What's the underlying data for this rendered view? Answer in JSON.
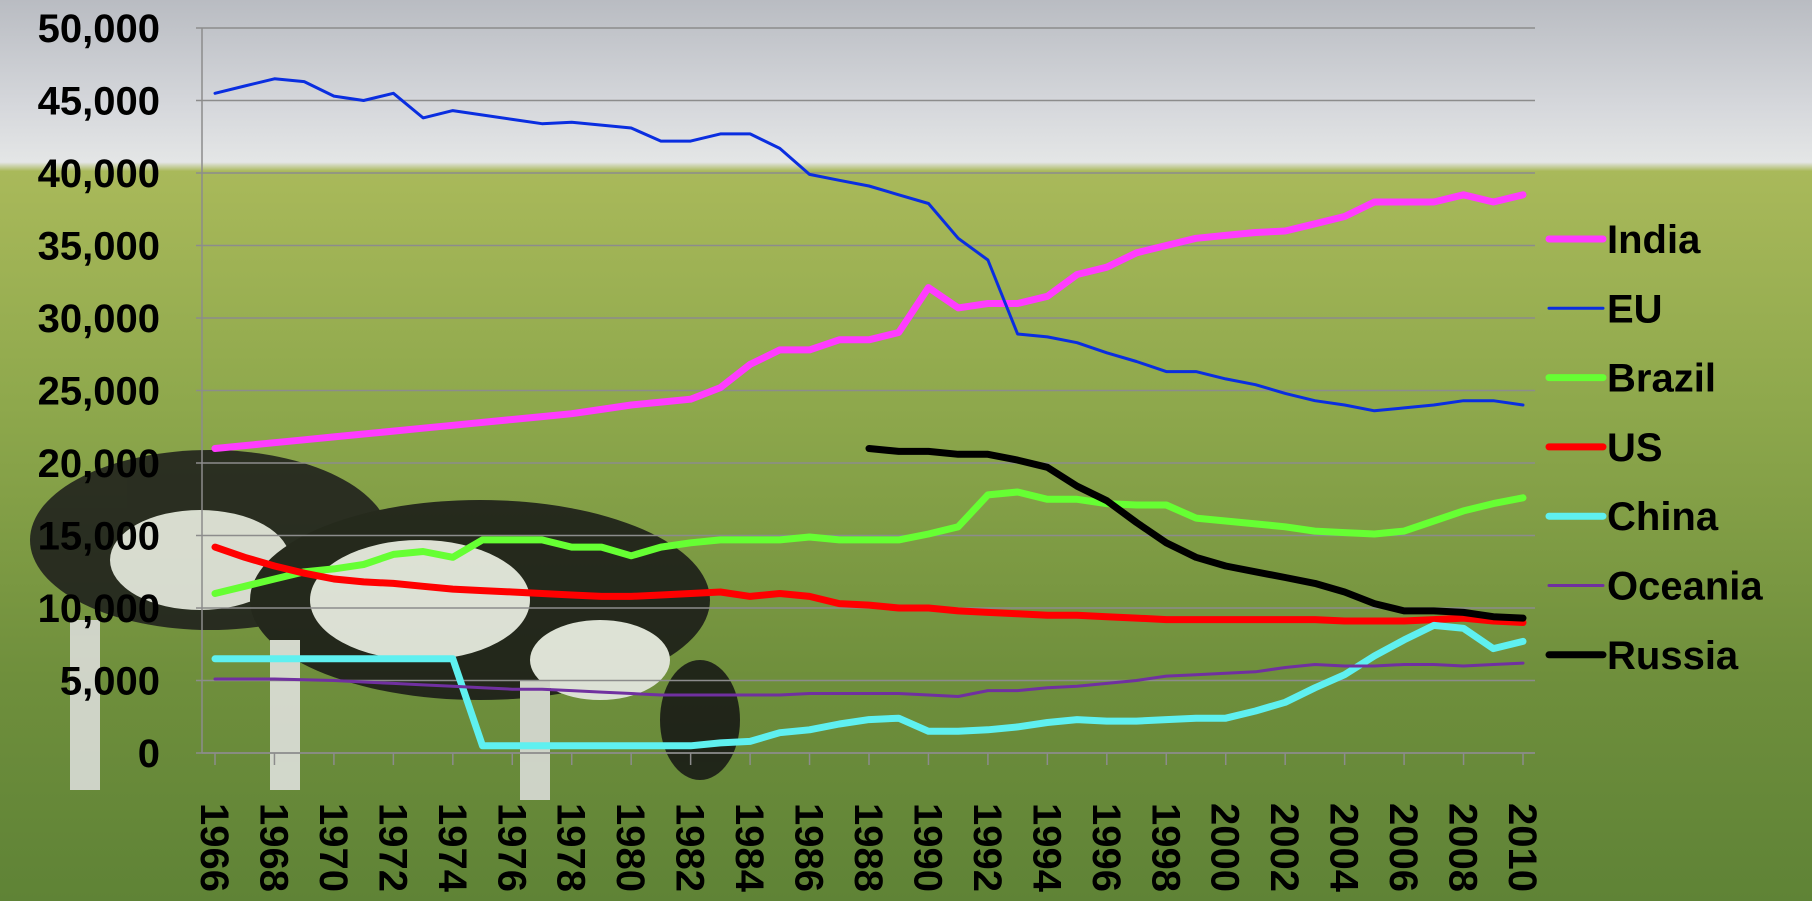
{
  "chart_data": {
    "type": "line",
    "x": [
      1966,
      1967,
      1968,
      1969,
      1970,
      1971,
      1972,
      1973,
      1974,
      1975,
      1976,
      1977,
      1978,
      1979,
      1980,
      1981,
      1982,
      1983,
      1984,
      1985,
      1986,
      1987,
      1988,
      1989,
      1990,
      1991,
      1992,
      1993,
      1994,
      1995,
      1996,
      1997,
      1998,
      1999,
      2000,
      2001,
      2002,
      2003,
      2004,
      2005,
      2006,
      2007,
      2008,
      2009,
      2010
    ],
    "xlim": [
      1966,
      2010
    ],
    "xticks": [
      1966,
      1968,
      1970,
      1972,
      1974,
      1976,
      1978,
      1980,
      1982,
      1984,
      1986,
      1988,
      1990,
      1992,
      1994,
      1996,
      1998,
      2000,
      2002,
      2004,
      2006,
      2008,
      2010
    ],
    "ylim": [
      0,
      50000
    ],
    "yticks": [
      0,
      {
        "value": 5000,
        "label": "5,000"
      },
      {
        "value": 10000,
        "label": "10,000"
      },
      {
        "value": 15000,
        "label": "15,000"
      },
      {
        "value": 20000,
        "label": "20,000"
      },
      {
        "value": 25000,
        "label": "25,000"
      },
      {
        "value": 30000,
        "label": "30,000"
      },
      {
        "value": 35000,
        "label": "35,000"
      },
      {
        "value": 40000,
        "label": "40,000"
      },
      {
        "value": 45000,
        "label": "45,000"
      },
      {
        "value": 50000,
        "label": "50,000"
      }
    ],
    "grid": true,
    "legend": "right",
    "series": [
      {
        "name": "India",
        "color": "#ff3cff",
        "width": 7,
        "values": [
          21000,
          21200,
          21400,
          21600,
          21800,
          22000,
          22200,
          22400,
          22600,
          22800,
          23000,
          23200,
          23400,
          23700,
          24000,
          24200,
          24400,
          25200,
          26800,
          27800,
          27800,
          28500,
          28500,
          29000,
          32100,
          30700,
          31000,
          31000,
          31500,
          33000,
          33500,
          34500,
          35000,
          35500,
          35700,
          35900,
          36000,
          36500,
          37000,
          38000,
          38000,
          38000,
          38500,
          38000,
          38500
        ]
      },
      {
        "name": "EU",
        "color": "#0a2ee0",
        "width": 3,
        "values": [
          45500,
          46000,
          46500,
          46300,
          45300,
          45000,
          45500,
          43800,
          44300,
          44000,
          43700,
          43400,
          43500,
          43300,
          43100,
          42200,
          42200,
          42700,
          42700,
          41700,
          39900,
          39500,
          39100,
          38500,
          37900,
          35500,
          34000,
          28900,
          28700,
          28300,
          27600,
          27000,
          26300,
          26300,
          25800,
          25400,
          24800,
          24300,
          24000,
          23600,
          23800,
          24000,
          24300,
          24300,
          24000
        ]
      },
      {
        "name": "Brazil",
        "color": "#66ff33",
        "width": 7,
        "values": [
          11000,
          11500,
          12000,
          12500,
          12700,
          13000,
          13700,
          13900,
          13500,
          14700,
          14700,
          14700,
          14200,
          14200,
          13600,
          14200,
          14500,
          14700,
          14700,
          14700,
          14900,
          14700,
          14700,
          14700,
          15100,
          15600,
          17800,
          18000,
          17500,
          17500,
          17200,
          17100,
          17100,
          16200,
          16000,
          15800,
          15600,
          15300,
          15200,
          15100,
          15300,
          16000,
          16700,
          17200,
          17600
        ]
      },
      {
        "name": "US",
        "color": "#ff0000",
        "width": 7,
        "values": [
          14200,
          13500,
          12900,
          12400,
          12000,
          11800,
          11700,
          11500,
          11300,
          11200,
          11100,
          11000,
          10900,
          10800,
          10800,
          10900,
          11000,
          11100,
          10800,
          11000,
          10800,
          10300,
          10200,
          10000,
          10000,
          9800,
          9700,
          9600,
          9500,
          9500,
          9400,
          9300,
          9200,
          9200,
          9200,
          9200,
          9200,
          9200,
          9100,
          9100,
          9100,
          9200,
          9300,
          9100,
          9000
        ]
      },
      {
        "name": "China",
        "color": "#5ff0f0",
        "width": 7,
        "values": [
          6500,
          6500,
          6500,
          6500,
          6500,
          6500,
          6500,
          6500,
          6500,
          500,
          500,
          500,
          500,
          500,
          500,
          500,
          500,
          700,
          800,
          1400,
          1600,
          2000,
          2300,
          2400,
          1500,
          1500,
          1600,
          1800,
          2100,
          2300,
          2200,
          2200,
          2300,
          2400,
          2400,
          2900,
          3500,
          4500,
          5400,
          6700,
          7800,
          8800,
          8600,
          7200,
          7700
        ]
      },
      {
        "name": "Oceania",
        "color": "#7030a0",
        "width": 3,
        "values": [
          5100,
          5100,
          5100,
          5050,
          5000,
          4900,
          4800,
          4700,
          4600,
          4500,
          4400,
          4400,
          4300,
          4200,
          4100,
          4000,
          4000,
          4000,
          4000,
          4000,
          4100,
          4100,
          4100,
          4100,
          4000,
          3900,
          4300,
          4300,
          4500,
          4600,
          4800,
          5000,
          5300,
          5400,
          5500,
          5600,
          5900,
          6100,
          6000,
          6000,
          6100,
          6100,
          6000,
          6100,
          6200
        ]
      },
      {
        "name": "Russia",
        "color": "#000000",
        "width": 7,
        "values": [
          null,
          null,
          null,
          null,
          null,
          null,
          null,
          null,
          null,
          null,
          null,
          null,
          null,
          null,
          null,
          null,
          null,
          null,
          null,
          null,
          null,
          null,
          21000,
          20800,
          20800,
          20600,
          20600,
          20200,
          19700,
          18400,
          17400,
          15900,
          14500,
          13500,
          12900,
          12500,
          12100,
          11700,
          11100,
          10300,
          9800,
          9800,
          9700,
          9400,
          9300
        ]
      }
    ]
  }
}
